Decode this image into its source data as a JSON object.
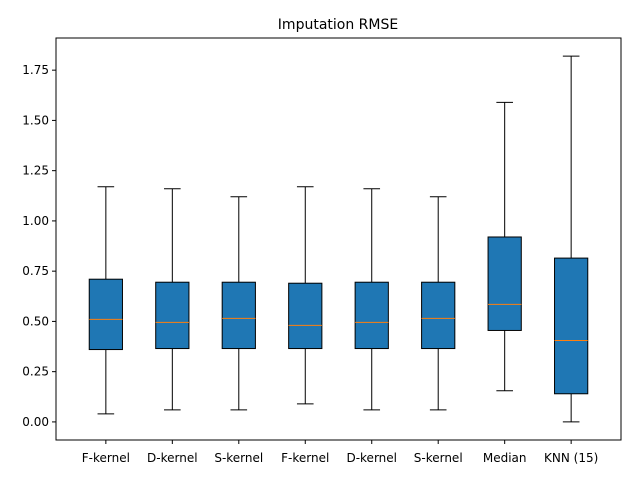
{
  "chart_data": {
    "type": "box",
    "title": "Imputation RMSE",
    "xlabel": "",
    "ylabel": "",
    "ylim": [
      -0.09,
      1.91
    ],
    "yticks": [
      0.0,
      0.25,
      0.5,
      0.75,
      1.0,
      1.25,
      1.5,
      1.75
    ],
    "ytick_labels": [
      "0.00",
      "0.25",
      "0.50",
      "0.75",
      "1.00",
      "1.25",
      "1.50",
      "1.75"
    ],
    "grid": false,
    "box_color": "#1f77b4",
    "median_color": "#ff7f0e",
    "categories": [
      "F-kernel",
      "D-kernel",
      "S-kernel",
      "F-kernel",
      "D-kernel",
      "S-kernel",
      "Median",
      "KNN (15)"
    ],
    "boxes": [
      {
        "whislo": 0.04,
        "q1": 0.36,
        "med": 0.51,
        "q3": 0.71,
        "whishi": 1.17
      },
      {
        "whislo": 0.06,
        "q1": 0.365,
        "med": 0.495,
        "q3": 0.695,
        "whishi": 1.16
      },
      {
        "whislo": 0.06,
        "q1": 0.365,
        "med": 0.515,
        "q3": 0.695,
        "whishi": 1.12
      },
      {
        "whislo": 0.09,
        "q1": 0.365,
        "med": 0.48,
        "q3": 0.69,
        "whishi": 1.17
      },
      {
        "whislo": 0.06,
        "q1": 0.365,
        "med": 0.495,
        "q3": 0.695,
        "whishi": 1.16
      },
      {
        "whislo": 0.06,
        "q1": 0.365,
        "med": 0.515,
        "q3": 0.695,
        "whishi": 1.12
      },
      {
        "whislo": 0.155,
        "q1": 0.455,
        "med": 0.585,
        "q3": 0.92,
        "whishi": 1.59
      },
      {
        "whislo": 0.0,
        "q1": 0.14,
        "med": 0.405,
        "q3": 0.815,
        "whishi": 1.82
      }
    ]
  }
}
